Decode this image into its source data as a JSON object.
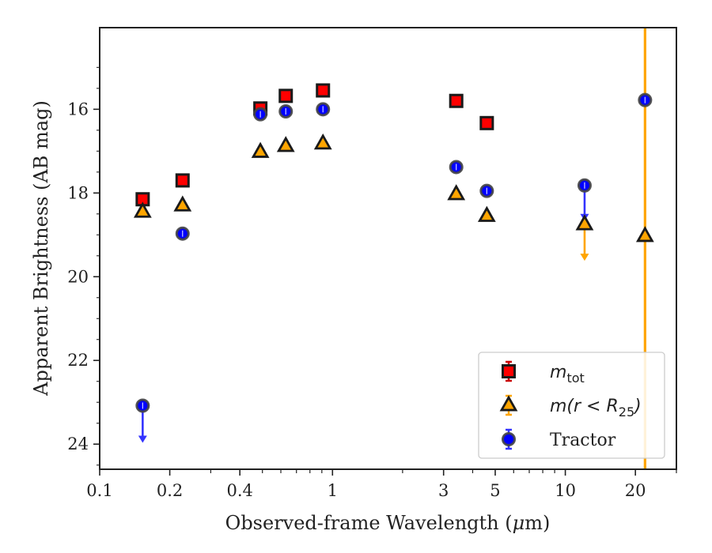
{
  "chart_data": {
    "type": "scatter",
    "xlabel_main": "Observed-frame Wavelength (",
    "xlabel_mu": "μ",
    "xlabel_unit": "m)",
    "ylabel": "Apparent Brightness (AB mag)",
    "xscale": "log",
    "yinverted": true,
    "xlim": [
      0.1,
      30
    ],
    "ylim": [
      24.6,
      14.05
    ],
    "x_ticks": [
      {
        "value": 0.1,
        "label": "0.1"
      },
      {
        "value": 0.2,
        "label": "0.2"
      },
      {
        "value": 0.4,
        "label": "0.4"
      },
      {
        "value": 1,
        "label": "1"
      },
      {
        "value": 3,
        "label": "3"
      },
      {
        "value": 5,
        "label": "5"
      },
      {
        "value": 10,
        "label": "10"
      },
      {
        "value": 20,
        "label": "20"
      }
    ],
    "x_minor_ticks": [
      0.3,
      0.5,
      0.6,
      0.7,
      0.8,
      0.9,
      2,
      4,
      6,
      7,
      8,
      9,
      30
    ],
    "y_ticks": [
      {
        "value": 16,
        "label": "16"
      },
      {
        "value": 18,
        "label": "18"
      },
      {
        "value": 20,
        "label": "20"
      },
      {
        "value": 22,
        "label": "22"
      },
      {
        "value": 24,
        "label": "24"
      }
    ],
    "legend_position": "lower-right",
    "series": [
      {
        "key": "mtot",
        "marker": "square",
        "color": "#ff0000",
        "edge": "#1a1a1a",
        "points": [
          {
            "x": 0.153,
            "y": 18.15
          },
          {
            "x": 0.227,
            "y": 17.7
          },
          {
            "x": 0.49,
            "y": 15.98
          },
          {
            "x": 0.63,
            "y": 15.68
          },
          {
            "x": 0.91,
            "y": 15.55
          },
          {
            "x": 3.4,
            "y": 15.8
          },
          {
            "x": 4.6,
            "y": 16.33
          }
        ]
      },
      {
        "key": "mr25",
        "marker": "triangle",
        "color": "#ffa500",
        "edge": "#1a1a1a",
        "points": [
          {
            "x": 0.153,
            "y": 18.45
          },
          {
            "x": 0.227,
            "y": 18.3
          },
          {
            "x": 0.49,
            "y": 17.02
          },
          {
            "x": 0.63,
            "y": 16.88
          },
          {
            "x": 0.91,
            "y": 16.82
          },
          {
            "x": 3.4,
            "y": 18.03
          },
          {
            "x": 4.6,
            "y": 18.55
          },
          {
            "x": 12.1,
            "y": 18.75,
            "upper_limit_to": 19.6
          },
          {
            "x": 22.0,
            "y": 19.03,
            "vertical_error": [
              14.05,
              24.6
            ]
          }
        ]
      },
      {
        "key": "tractor",
        "marker": "circle",
        "color": "#0000ff",
        "edge": "#444444",
        "points": [
          {
            "x": 0.153,
            "y": 23.08,
            "upper_limit_to": 23.95
          },
          {
            "x": 0.227,
            "y": 18.97
          },
          {
            "x": 0.49,
            "y": 16.12
          },
          {
            "x": 0.63,
            "y": 16.05
          },
          {
            "x": 0.91,
            "y": 16.0
          },
          {
            "x": 3.4,
            "y": 17.38
          },
          {
            "x": 4.6,
            "y": 17.95
          },
          {
            "x": 12.1,
            "y": 17.82,
            "upper_limit_to": 18.65
          },
          {
            "x": 22.0,
            "y": 15.78
          }
        ]
      }
    ],
    "legend": [
      {
        "key": "mtot",
        "marker": "square",
        "color": "#ff0000",
        "errcolor": "#cc0000",
        "label_main": "m",
        "label_sub": "tot",
        "label_tail": ""
      },
      {
        "key": "mr25",
        "marker": "triangle",
        "color": "#ffa500",
        "errcolor": "#ffa500",
        "label_main": "m(r < R",
        "label_sub": "25",
        "label_tail": ")"
      },
      {
        "key": "tractor",
        "marker": "circle",
        "color": "#0000ff",
        "errcolor": "#3333ff",
        "label_main": "Tractor",
        "label_sub": "",
        "label_tail": ""
      }
    ]
  }
}
